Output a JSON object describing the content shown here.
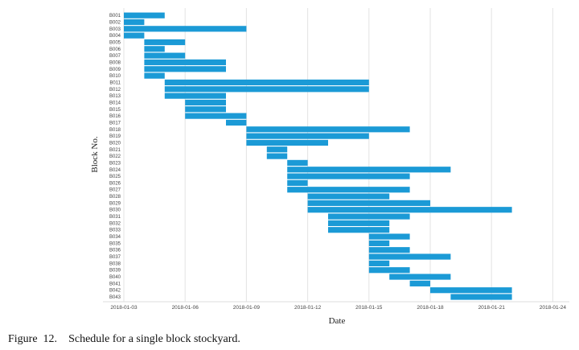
{
  "chart_data": {
    "type": "bar",
    "orientation": "horizontal-gantt",
    "xlabel": "Date",
    "ylabel": "Block No.",
    "x_ticks": [
      "2018-01-03",
      "2018-01-06",
      "2018-01-09",
      "2018-01-12",
      "2018-01-15",
      "2018-01-18",
      "2018-01-21",
      "2018-01-24"
    ],
    "xlim": [
      "2018-01-03",
      "2018-01-24"
    ],
    "grid": "vertical",
    "bar_color": "#1b9ad6",
    "tasks": [
      {
        "block": "B001",
        "start": "2018-01-03",
        "end": "2018-01-05"
      },
      {
        "block": "B002",
        "start": "2018-01-03",
        "end": "2018-01-04"
      },
      {
        "block": "B003",
        "start": "2018-01-03",
        "end": "2018-01-09"
      },
      {
        "block": "B004",
        "start": "2018-01-03",
        "end": "2018-01-04"
      },
      {
        "block": "B005",
        "start": "2018-01-04",
        "end": "2018-01-06"
      },
      {
        "block": "B006",
        "start": "2018-01-04",
        "end": "2018-01-05"
      },
      {
        "block": "B007",
        "start": "2018-01-04",
        "end": "2018-01-06"
      },
      {
        "block": "B008",
        "start": "2018-01-04",
        "end": "2018-01-08"
      },
      {
        "block": "B009",
        "start": "2018-01-04",
        "end": "2018-01-08"
      },
      {
        "block": "B010",
        "start": "2018-01-04",
        "end": "2018-01-05"
      },
      {
        "block": "B011",
        "start": "2018-01-05",
        "end": "2018-01-15"
      },
      {
        "block": "B012",
        "start": "2018-01-05",
        "end": "2018-01-15"
      },
      {
        "block": "B013",
        "start": "2018-01-05",
        "end": "2018-01-08"
      },
      {
        "block": "B014",
        "start": "2018-01-06",
        "end": "2018-01-08"
      },
      {
        "block": "B015",
        "start": "2018-01-06",
        "end": "2018-01-08"
      },
      {
        "block": "B016",
        "start": "2018-01-06",
        "end": "2018-01-09"
      },
      {
        "block": "B017",
        "start": "2018-01-08",
        "end": "2018-01-09"
      },
      {
        "block": "B018",
        "start": "2018-01-09",
        "end": "2018-01-17"
      },
      {
        "block": "B019",
        "start": "2018-01-09",
        "end": "2018-01-15"
      },
      {
        "block": "B020",
        "start": "2018-01-09",
        "end": "2018-01-13"
      },
      {
        "block": "B021",
        "start": "2018-01-10",
        "end": "2018-01-11"
      },
      {
        "block": "B022",
        "start": "2018-01-10",
        "end": "2018-01-11"
      },
      {
        "block": "B023",
        "start": "2018-01-11",
        "end": "2018-01-12"
      },
      {
        "block": "B024",
        "start": "2018-01-11",
        "end": "2018-01-19"
      },
      {
        "block": "B025",
        "start": "2018-01-11",
        "end": "2018-01-17"
      },
      {
        "block": "B026",
        "start": "2018-01-11",
        "end": "2018-01-12"
      },
      {
        "block": "B027",
        "start": "2018-01-11",
        "end": "2018-01-17"
      },
      {
        "block": "B028",
        "start": "2018-01-12",
        "end": "2018-01-16"
      },
      {
        "block": "B029",
        "start": "2018-01-12",
        "end": "2018-01-18"
      },
      {
        "block": "B030",
        "start": "2018-01-12",
        "end": "2018-01-22"
      },
      {
        "block": "B031",
        "start": "2018-01-13",
        "end": "2018-01-17"
      },
      {
        "block": "B032",
        "start": "2018-01-13",
        "end": "2018-01-16"
      },
      {
        "block": "B033",
        "start": "2018-01-13",
        "end": "2018-01-16"
      },
      {
        "block": "B034",
        "start": "2018-01-15",
        "end": "2018-01-17"
      },
      {
        "block": "B035",
        "start": "2018-01-15",
        "end": "2018-01-16"
      },
      {
        "block": "B036",
        "start": "2018-01-15",
        "end": "2018-01-17"
      },
      {
        "block": "B037",
        "start": "2018-01-15",
        "end": "2018-01-19"
      },
      {
        "block": "B038",
        "start": "2018-01-15",
        "end": "2018-01-16"
      },
      {
        "block": "B039",
        "start": "2018-01-15",
        "end": "2018-01-17"
      },
      {
        "block": "B040",
        "start": "2018-01-16",
        "end": "2018-01-19"
      },
      {
        "block": "B041",
        "start": "2018-01-17",
        "end": "2018-01-18"
      },
      {
        "block": "B042",
        "start": "2018-01-18",
        "end": "2018-01-22"
      },
      {
        "block": "B043",
        "start": "2018-01-19",
        "end": "2018-01-22"
      }
    ]
  },
  "caption": {
    "label": "Figure  12.",
    "text": "Schedule for a single block stockyard."
  }
}
